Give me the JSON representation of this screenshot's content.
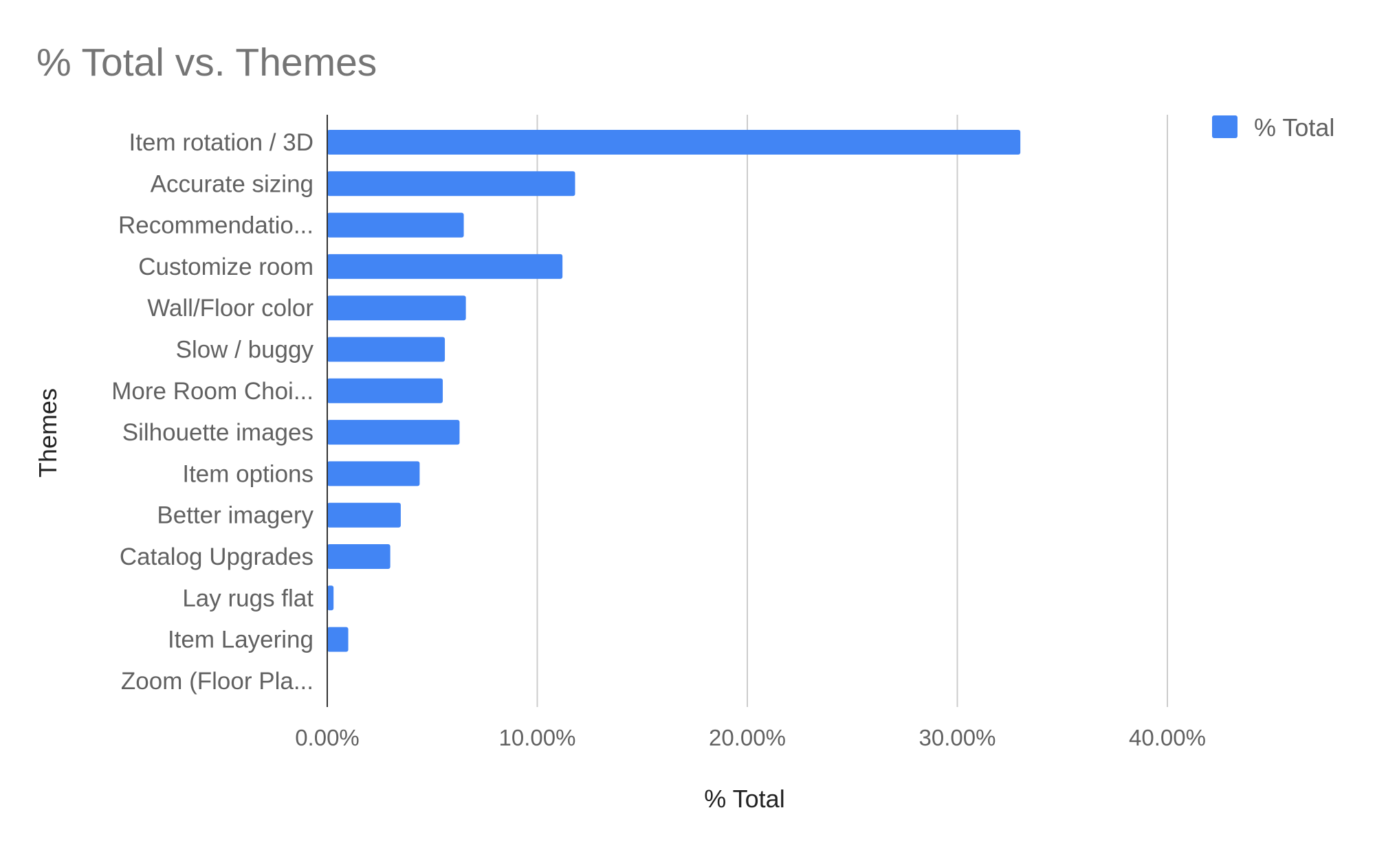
{
  "chart_data": {
    "type": "bar",
    "orientation": "horizontal",
    "title": "% Total vs. Themes",
    "xlabel": "% Total",
    "ylabel": "Themes",
    "categories": [
      "Item rotation / 3D",
      "Accurate sizing",
      "Recommendatio...",
      "Customize room",
      "Wall/Floor color",
      "Slow / buggy",
      "More Room Choi...",
      "Silhouette images",
      "Item options",
      "Better imagery",
      "Catalog Upgrades",
      "Lay rugs flat",
      "Item Layering",
      "Zoom (Floor Pla..."
    ],
    "series": [
      {
        "name": "% Total",
        "values": [
          33.0,
          11.8,
          6.5,
          11.2,
          6.6,
          5.6,
          5.5,
          6.3,
          4.4,
          3.5,
          3.0,
          0.3,
          1.0,
          0.0
        ]
      }
    ],
    "xlim": [
      0,
      45
    ],
    "xticks": [
      0,
      10,
      20,
      30,
      40
    ],
    "xtick_labels": [
      "0.00%",
      "10.00%",
      "20.00%",
      "30.00%",
      "40.00%"
    ],
    "grid": true,
    "legend_position": "top-right",
    "colors": {
      "bar": "#4285f4",
      "grid": "#cccccc",
      "axis": "#333333",
      "title": "#757575",
      "label": "#222222",
      "tick": "#616161"
    }
  }
}
